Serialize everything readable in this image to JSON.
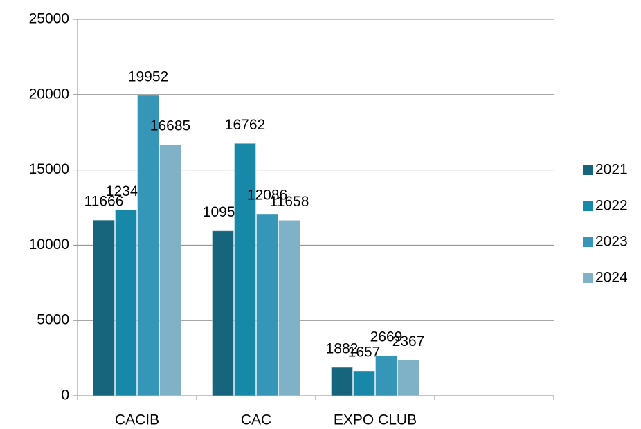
{
  "chart_data": {
    "type": "bar",
    "categories": [
      "CACIB",
      "CAC",
      "EXPO CLUB",
      null
    ],
    "series": [
      {
        "name": "2021",
        "color": "#17657d",
        "values": [
          11666,
          10953,
          1882,
          null
        ]
      },
      {
        "name": "2022",
        "color": "#1888a9",
        "values": [
          12347,
          16762,
          1657,
          null
        ]
      },
      {
        "name": "2023",
        "color": "#3596b8",
        "values": [
          19952,
          12086,
          2669,
          null
        ]
      },
      {
        "name": "2024",
        "color": "#7fb2c6",
        "values": [
          16685,
          11658,
          2367,
          null
        ]
      }
    ],
    "ylim": [
      0,
      25000
    ],
    "yticks": [
      0,
      5000,
      10000,
      15000,
      20000,
      25000
    ],
    "grid": true,
    "legend": "right"
  }
}
